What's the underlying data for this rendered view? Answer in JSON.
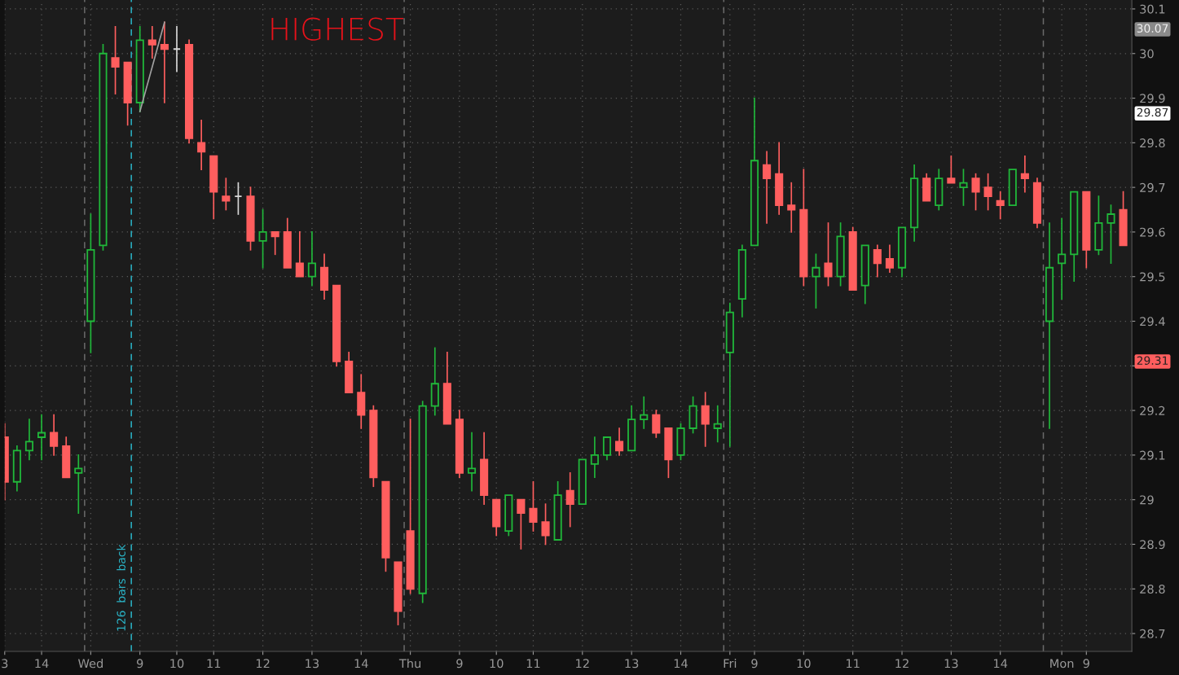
{
  "chart_data": {
    "type": "candlestick",
    "categories": [
      "3",
      null,
      null,
      "14",
      null,
      null,
      null,
      "Wed",
      null,
      null,
      null,
      "9",
      null,
      null,
      "10",
      null,
      null,
      "11",
      null,
      null,
      null,
      "12",
      null,
      null,
      null,
      "13",
      null,
      null,
      null,
      "14",
      null,
      null,
      null,
      "Thu",
      null,
      null,
      null,
      "9",
      null,
      null,
      "10",
      null,
      null,
      "11",
      null,
      null,
      null,
      "12",
      null,
      null,
      null,
      "13",
      null,
      null,
      null,
      "14",
      null,
      null,
      null,
      "Fri",
      null,
      "9",
      null,
      null,
      null,
      "10",
      null,
      null,
      null,
      "11",
      null,
      null,
      null,
      "12",
      null,
      null,
      null,
      "13",
      null,
      null,
      null,
      "14",
      null,
      null,
      null,
      null,
      "Mon",
      null,
      "9",
      null,
      null,
      null
    ],
    "ohlc": [
      [
        29.14,
        29.17,
        29.0,
        29.04
      ],
      [
        29.04,
        29.12,
        29.02,
        29.11
      ],
      [
        29.11,
        29.18,
        29.09,
        29.13
      ],
      [
        29.14,
        29.19,
        29.09,
        29.15
      ],
      [
        29.15,
        29.19,
        29.1,
        29.12
      ],
      [
        29.12,
        29.14,
        29.05,
        29.05
      ],
      [
        29.06,
        29.1,
        28.97,
        29.07
      ],
      [
        29.4,
        29.64,
        29.33,
        29.56
      ],
      [
        29.57,
        30.02,
        29.56,
        30.0
      ],
      [
        29.99,
        30.06,
        29.91,
        29.97
      ],
      [
        29.98,
        29.98,
        29.84,
        29.89
      ],
      [
        29.89,
        30.06,
        29.87,
        30.03
      ],
      [
        30.03,
        30.06,
        29.99,
        30.02
      ],
      [
        30.02,
        30.07,
        29.89,
        30.01
      ],
      [
        30.01,
        30.06,
        29.96,
        30.01
      ],
      [
        30.02,
        30.03,
        29.8,
        29.81
      ],
      [
        29.8,
        29.85,
        29.74,
        29.78
      ],
      [
        29.77,
        29.77,
        29.63,
        29.69
      ],
      [
        29.68,
        29.72,
        29.65,
        29.67
      ],
      [
        29.68,
        29.71,
        29.64,
        29.68
      ],
      [
        29.68,
        29.7,
        29.56,
        29.58
      ],
      [
        29.58,
        29.65,
        29.52,
        29.6
      ],
      [
        29.6,
        29.6,
        29.55,
        29.59
      ],
      [
        29.6,
        29.63,
        29.52,
        29.52
      ],
      [
        29.53,
        29.6,
        29.5,
        29.5
      ],
      [
        29.5,
        29.6,
        29.48,
        29.53
      ],
      [
        29.52,
        29.55,
        29.45,
        29.47
      ],
      [
        29.48,
        29.48,
        29.3,
        29.31
      ],
      [
        29.31,
        29.33,
        29.24,
        29.24
      ],
      [
        29.24,
        29.28,
        29.16,
        29.19
      ],
      [
        29.2,
        29.21,
        29.03,
        29.05
      ],
      [
        29.04,
        29.04,
        28.84,
        28.87
      ],
      [
        28.86,
        28.86,
        28.72,
        28.75
      ],
      [
        28.93,
        29.18,
        28.79,
        28.8
      ],
      [
        28.79,
        29.22,
        28.77,
        29.21
      ],
      [
        29.21,
        29.34,
        29.19,
        29.26
      ],
      [
        29.26,
        29.33,
        29.17,
        29.17
      ],
      [
        29.18,
        29.2,
        29.05,
        29.06
      ],
      [
        29.06,
        29.15,
        29.02,
        29.07
      ],
      [
        29.09,
        29.15,
        28.99,
        29.01
      ],
      [
        29.0,
        29.0,
        28.92,
        28.94
      ],
      [
        28.93,
        29.01,
        28.92,
        29.01
      ],
      [
        29.0,
        29.0,
        28.89,
        28.97
      ],
      [
        28.98,
        29.04,
        28.93,
        28.95
      ],
      [
        28.95,
        28.99,
        28.9,
        28.92
      ],
      [
        28.91,
        29.04,
        28.91,
        29.01
      ],
      [
        29.02,
        29.06,
        28.94,
        28.99
      ],
      [
        28.99,
        29.09,
        28.99,
        29.09
      ],
      [
        29.08,
        29.14,
        29.05,
        29.1
      ],
      [
        29.1,
        29.14,
        29.09,
        29.14
      ],
      [
        29.13,
        29.16,
        29.1,
        29.11
      ],
      [
        29.11,
        29.21,
        29.11,
        29.18
      ],
      [
        29.18,
        29.23,
        29.16,
        29.19
      ],
      [
        29.19,
        29.2,
        29.14,
        29.15
      ],
      [
        29.16,
        29.16,
        29.05,
        29.09
      ],
      [
        29.1,
        29.17,
        29.09,
        29.16
      ],
      [
        29.16,
        29.23,
        29.15,
        29.21
      ],
      [
        29.21,
        29.24,
        29.12,
        29.17
      ],
      [
        29.16,
        29.21,
        29.13,
        29.17
      ],
      [
        29.33,
        29.44,
        29.12,
        29.42
      ],
      [
        29.45,
        29.57,
        29.41,
        29.56
      ],
      [
        29.57,
        29.9,
        29.57,
        29.76
      ],
      [
        29.75,
        29.78,
        29.62,
        29.72
      ],
      [
        29.73,
        29.8,
        29.64,
        29.66
      ],
      [
        29.66,
        29.71,
        29.6,
        29.65
      ],
      [
        29.65,
        29.74,
        29.48,
        29.5
      ],
      [
        29.5,
        29.55,
        29.43,
        29.52
      ],
      [
        29.53,
        29.62,
        29.48,
        29.5
      ],
      [
        29.5,
        29.62,
        29.48,
        29.59
      ],
      [
        29.6,
        29.61,
        29.47,
        29.47
      ],
      [
        29.48,
        29.57,
        29.44,
        29.57
      ],
      [
        29.56,
        29.57,
        29.5,
        29.53
      ],
      [
        29.54,
        29.57,
        29.51,
        29.52
      ],
      [
        29.52,
        29.61,
        29.5,
        29.61
      ],
      [
        29.61,
        29.75,
        29.58,
        29.72
      ],
      [
        29.72,
        29.73,
        29.67,
        29.67
      ],
      [
        29.66,
        29.74,
        29.65,
        29.72
      ],
      [
        29.72,
        29.77,
        29.71,
        29.71
      ],
      [
        29.7,
        29.74,
        29.66,
        29.71
      ],
      [
        29.72,
        29.73,
        29.65,
        29.69
      ],
      [
        29.7,
        29.73,
        29.65,
        29.68
      ],
      [
        29.67,
        29.69,
        29.63,
        29.66
      ],
      [
        29.66,
        29.74,
        29.66,
        29.74
      ],
      [
        29.73,
        29.77,
        29.69,
        29.72
      ],
      [
        29.71,
        29.72,
        29.61,
        29.62
      ],
      [
        29.4,
        29.62,
        29.16,
        29.52
      ],
      [
        29.53,
        29.63,
        29.45,
        29.55
      ],
      [
        29.55,
        29.69,
        29.49,
        29.69
      ],
      [
        29.69,
        29.69,
        29.52,
        29.56
      ],
      [
        29.56,
        29.68,
        29.55,
        29.62
      ],
      [
        29.62,
        29.66,
        29.53,
        29.64
      ],
      [
        29.65,
        29.69,
        29.57,
        29.57
      ]
    ],
    "colors": [
      "#ff5e5e",
      "#20b83a",
      "#20b83a",
      "#20b83a",
      "#ff5e5e",
      "#ff5e5e",
      "#20b83a",
      "#20b83a",
      "#20b83a",
      "#ff5e5e",
      "#ff5e5e",
      "#20b83a",
      "#ff5e5e",
      "#ff5e5e",
      "#d8d8d8",
      "#ff5e5e",
      "#ff5e5e",
      "#ff5e5e",
      "#ff5e5e",
      "#d8d8d8",
      "#ff5e5e",
      "#20b83a",
      "#ff5e5e",
      "#ff5e5e",
      "#ff5e5e",
      "#20b83a",
      "#ff5e5e",
      "#ff5e5e",
      "#ff5e5e",
      "#ff5e5e",
      "#ff5e5e",
      "#ff5e5e",
      "#ff5e5e",
      "#ff5e5e",
      "#20b83a",
      "#20b83a",
      "#ff5e5e",
      "#ff5e5e",
      "#20b83a",
      "#ff5e5e",
      "#ff5e5e",
      "#20b83a",
      "#ff5e5e",
      "#ff5e5e",
      "#ff5e5e",
      "#20b83a",
      "#ff5e5e",
      "#20b83a",
      "#20b83a",
      "#20b83a",
      "#ff5e5e",
      "#20b83a",
      "#20b83a",
      "#ff5e5e",
      "#ff5e5e",
      "#20b83a",
      "#20b83a",
      "#ff5e5e",
      "#20b83a",
      "#20b83a",
      "#20b83a",
      "#20b83a",
      "#ff5e5e",
      "#ff5e5e",
      "#ff5e5e",
      "#ff5e5e",
      "#20b83a",
      "#ff5e5e",
      "#20b83a",
      "#ff5e5e",
      "#20b83a",
      "#ff5e5e",
      "#ff5e5e",
      "#20b83a",
      "#20b83a",
      "#ff5e5e",
      "#20b83a",
      "#ff5e5e",
      "#20b83a",
      "#ff5e5e",
      "#ff5e5e",
      "#ff5e5e",
      "#20b83a",
      "#ff5e5e",
      "#ff5e5e",
      "#20b83a",
      "#20b83a",
      "#20b83a",
      "#ff5e5e",
      "#20b83a",
      "#20b83a",
      "#ff5e5e"
    ],
    "series": [
      {
        "type": "line",
        "values": [
          null,
          null,
          null,
          null,
          null,
          null,
          null,
          null,
          null,
          null,
          null,
          29.87,
          29.97,
          30.07,
          null,
          null,
          null,
          null,
          null,
          null,
          null,
          null,
          null,
          null,
          null,
          null,
          null,
          null,
          null,
          null,
          null,
          null,
          null,
          null,
          null,
          null,
          null,
          null,
          null,
          null,
          null,
          null,
          null,
          null,
          null,
          null,
          null,
          null,
          null,
          null,
          null,
          null,
          null,
          null,
          null,
          null,
          null,
          null,
          null,
          null,
          null,
          null,
          null,
          null,
          null,
          null,
          null,
          null,
          null,
          null,
          null,
          null,
          null,
          null,
          null,
          null,
          null,
          null,
          null,
          null,
          null,
          null,
          null,
          null,
          null,
          null,
          null,
          null,
          null,
          null,
          null,
          null
        ],
        "color": "#a0a0a0"
      }
    ],
    "ylim": [
      28.66,
      30.12
    ],
    "yticks": [
      28.7,
      28.8,
      28.9,
      {
        "value": 29,
        "label": "29"
      },
      29.1,
      29.2,
      {
        "value": 29.3,
        "label": null
      },
      29.4,
      29.5,
      29.6,
      29.7,
      29.8,
      29.9,
      {
        "value": 30,
        "label": "30"
      },
      30.1
    ],
    "grid": true,
    "annotations": [
      "HIGHEST",
      "126  bars  back",
      "30.07",
      "29.87",
      "29.31"
    ]
  }
}
